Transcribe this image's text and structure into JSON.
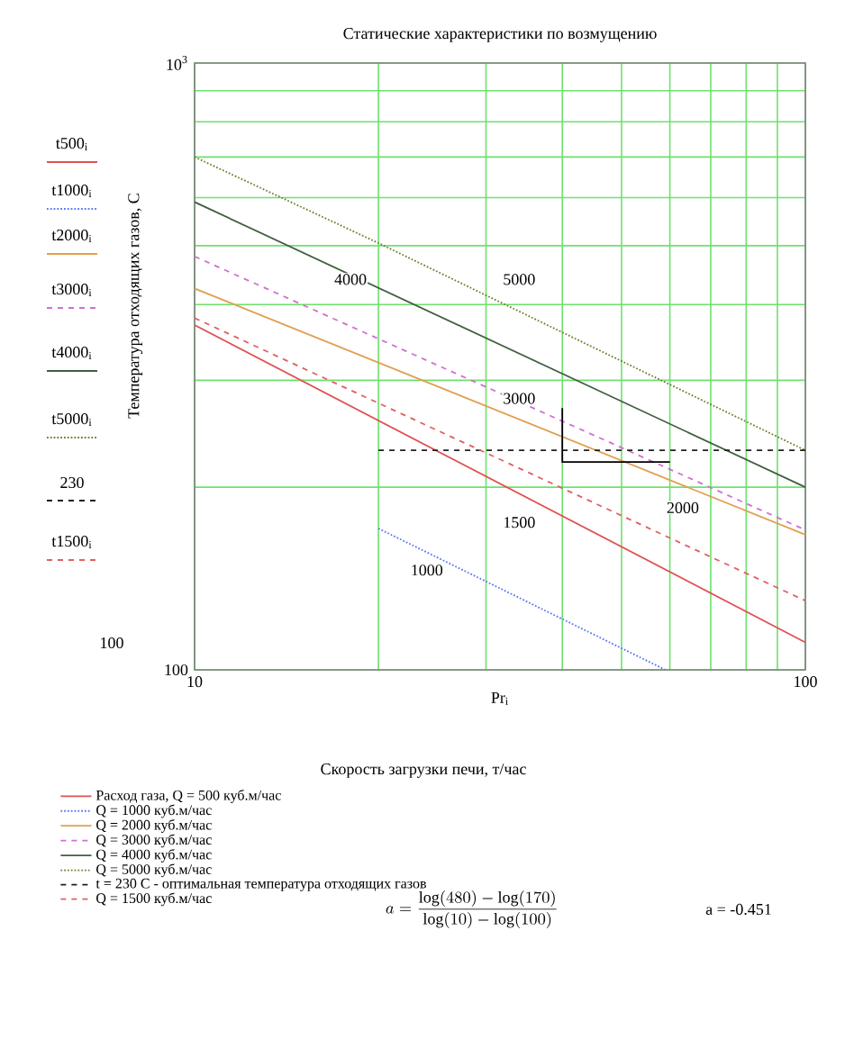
{
  "chart_data": {
    "type": "line",
    "title": "Статические характеристики по возмущению",
    "xlabel": "Pr$_{i}$",
    "ylabel": "Температура отходящих газов, С",
    "log": "xy",
    "grid": true,
    "legend": "bottom",
    "xlim": [
      10,
      100
    ],
    "ylim": [
      100,
      1000
    ],
    "xticks": [
      10,
      {
        "value": 20,
        "label": null
      },
      {
        "value": 30,
        "label": null
      },
      {
        "value": 40,
        "label": null
      },
      {
        "value": 50,
        "label": null
      },
      {
        "value": 60,
        "label": null
      },
      {
        "value": 70,
        "label": null
      },
      {
        "value": 80,
        "label": null
      },
      {
        "value": 90,
        "label": null
      },
      100
    ],
    "yticks": [
      100,
      {
        "value": 200,
        "label": null
      },
      {
        "value": 300,
        "label": null
      },
      {
        "value": 400,
        "label": null
      },
      {
        "value": 500,
        "label": null
      },
      {
        "value": 600,
        "label": null
      },
      {
        "value": 700,
        "label": null
      },
      {
        "value": 800,
        "label": null
      },
      {
        "value": 900,
        "label": null
      },
      {
        "value": 1000,
        "label": "10$^{3}$"
      }
    ],
    "series": [
      {
        "name": "Расход газа, Q = 500 куб.м/час",
        "color": "#e05050",
        "line_style": "solid",
        "x": [
          10,
          100
        ],
        "values": [
          370,
          111
        ]
      },
      {
        "name": "Q = 1000 куб.м/час",
        "color": "#5a78f0",
        "line_style": "dotted",
        "x": [
          20,
          59
        ],
        "values": [
          171,
          100
        ]
      },
      {
        "name": "Q = 2000 куб.м/час",
        "color": "#e0a050",
        "line_style": "solid",
        "x": [
          10,
          100
        ],
        "values": [
          425,
          167
        ]
      },
      {
        "name": "Q = 3000 куб.м/час",
        "color": "#d070d0",
        "line_style": "dashed",
        "x": [
          10,
          100
        ],
        "values": [
          480,
          170
        ]
      },
      {
        "name": "Q = 4000 куб.м/час",
        "color": "#406040",
        "line_style": "solid",
        "x": [
          10,
          100
        ],
        "values": [
          590,
          200
        ]
      },
      {
        "name": "Q = 5000 куб.м/час",
        "color": "#708030",
        "line_style": "dotted",
        "x": [
          10,
          20,
          100
        ],
        "values": [
          700,
          505,
          230
        ]
      },
      {
        "name": "t = 230 C - оптимальная температура отходящих газов",
        "color": "#202020",
        "line_style": "dashed",
        "x": [
          20,
          100
        ],
        "values": [
          230,
          230
        ]
      },
      {
        "name": "Q = 1500 куб.м/час",
        "color": "#e06060",
        "line_style": "dashed",
        "x": [
          10,
          100
        ],
        "values": [
          380,
          130
        ]
      },
      {
        "color": "#000000",
        "line_style": "solid",
        "x": [
          40,
          40,
          60
        ],
        "values": [
          270,
          220,
          220
        ]
      }
    ],
    "annotations": [
      "Скорость загрузки печи, т/час",
      "t500$_{i}$",
      "t1000$_{i}$",
      "t2000$_{i}$",
      "t3000$_{i}$",
      "t4000$_{i}$",
      "t5000$_{i}$",
      "230",
      "t1500$_{i}$",
      "100",
      "a = \\frac{\\log(480) - \\log(170)}{\\log(10) - \\log(100)}",
      "a = -0.451",
      {
        "text": "4000",
        "x": 18,
        "y": 440
      },
      {
        "text": "5000",
        "x": 34,
        "y": 440
      },
      {
        "text": "3000",
        "x": 34,
        "y": 280
      },
      {
        "text": "2000",
        "x": 63,
        "y": 185
      },
      {
        "text": "1500",
        "x": 34,
        "y": 175
      },
      {
        "text": "1000",
        "x": 24,
        "y": 146
      }
    ]
  }
}
